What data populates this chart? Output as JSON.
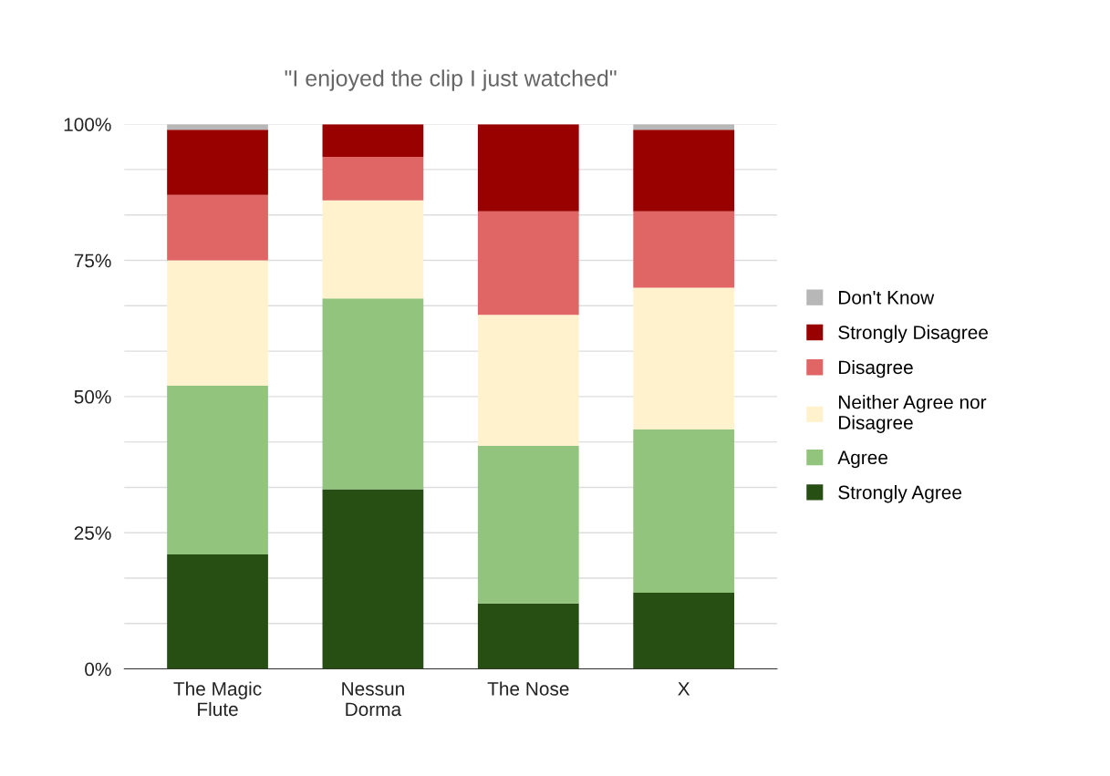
{
  "chart_data": {
    "type": "bar",
    "title": "\"I enjoyed the clip I just watched\"",
    "categories": [
      "The Magic\nFlute",
      "Nessun\nDorma",
      "The Nose",
      "X"
    ],
    "stacked": true,
    "series": [
      {
        "name": "Strongly Agree",
        "color": "#274e13",
        "values": [
          21,
          33,
          12,
          14
        ]
      },
      {
        "name": "Agree",
        "color": "#93c47d",
        "values": [
          31,
          35,
          29,
          30
        ]
      },
      {
        "name": "Neither Agree nor\nDisagree",
        "color": "#fff2cc",
        "values": [
          23,
          18,
          24,
          26
        ]
      },
      {
        "name": "Disagree",
        "color": "#e06666",
        "values": [
          12,
          8,
          19,
          14
        ]
      },
      {
        "name": "Strongly Disagree",
        "color": "#990000",
        "values": [
          12,
          6,
          16,
          15
        ]
      },
      {
        "name": "Don't Know",
        "color": "#b7b7b7",
        "values": [
          1,
          0,
          0,
          1
        ]
      }
    ],
    "ylim": [
      0,
      100
    ],
    "yticks": [
      {
        "value": 0,
        "label": "0%"
      },
      {
        "value": 8.33,
        "label": null
      },
      {
        "value": 16.67,
        "label": null
      },
      {
        "value": 25,
        "label": "25%"
      },
      {
        "value": 33.33,
        "label": null
      },
      {
        "value": 41.67,
        "label": null
      },
      {
        "value": 50,
        "label": "50%"
      },
      {
        "value": 58.33,
        "label": null
      },
      {
        "value": 66.67,
        "label": null
      },
      {
        "value": 75,
        "label": "75%"
      },
      {
        "value": 83.33,
        "label": null
      },
      {
        "value": 91.67,
        "label": null
      },
      {
        "value": 100,
        "label": "100%"
      }
    ],
    "grid": "y",
    "legend": "right"
  }
}
